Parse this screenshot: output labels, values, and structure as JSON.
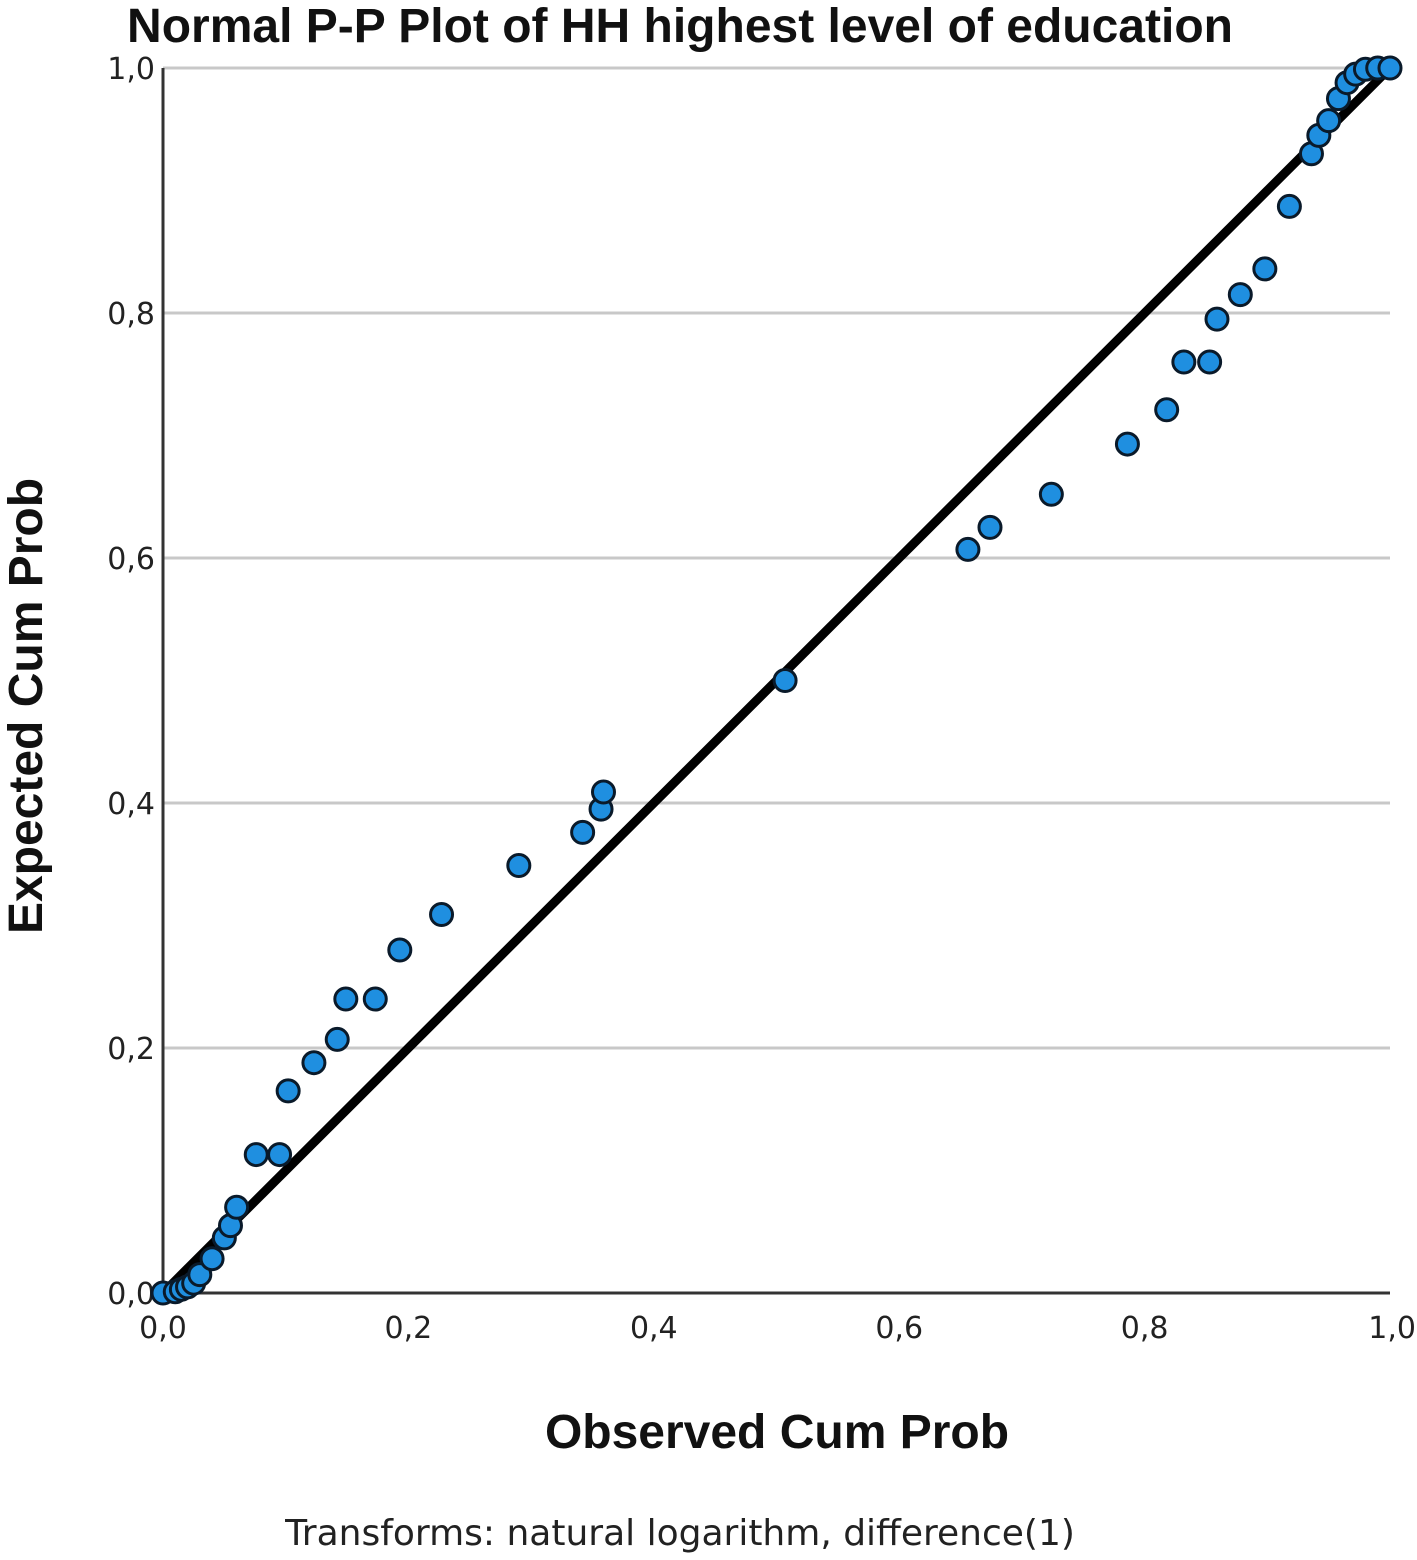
{
  "chart_data": {
    "type": "scatter",
    "title": "Normal P-P Plot of HH highest level of education",
    "xlabel": "Observed Cum Prob",
    "ylabel": "Expected Cum Prob",
    "footnote": "Transforms: natural logarithm, difference(1)",
    "xlim": [
      0,
      1
    ],
    "ylim": [
      0,
      1
    ],
    "x_ticks": [
      "0,0",
      "0,2",
      "0,4",
      "0,6",
      "0,8",
      "1,0"
    ],
    "y_ticks": [
      "0,0",
      "0,2",
      "0,4",
      "0,6",
      "0,8",
      "1,0"
    ],
    "grid": "horizontal",
    "reference_line": [
      [
        0,
        0
      ],
      [
        1,
        1
      ]
    ],
    "colors": {
      "point_fill": "#1f8fe0",
      "point_stroke": "#0a1a2a",
      "line": "#000000",
      "grid": "#c8c8c8"
    },
    "points": [
      [
        0.0,
        0.0
      ],
      [
        0.01,
        0.001
      ],
      [
        0.015,
        0.003
      ],
      [
        0.02,
        0.005
      ],
      [
        0.025,
        0.008
      ],
      [
        0.03,
        0.015
      ],
      [
        0.04,
        0.028
      ],
      [
        0.05,
        0.045
      ],
      [
        0.055,
        0.055
      ],
      [
        0.06,
        0.07
      ],
      [
        0.076,
        0.113
      ],
      [
        0.095,
        0.113
      ],
      [
        0.102,
        0.165
      ],
      [
        0.123,
        0.188
      ],
      [
        0.142,
        0.207
      ],
      [
        0.149,
        0.24
      ],
      [
        0.173,
        0.24
      ],
      [
        0.193,
        0.28
      ],
      [
        0.227,
        0.309
      ],
      [
        0.29,
        0.349
      ],
      [
        0.342,
        0.376
      ],
      [
        0.357,
        0.395
      ],
      [
        0.359,
        0.409
      ],
      [
        0.507,
        0.5
      ],
      [
        0.656,
        0.607
      ],
      [
        0.674,
        0.625
      ],
      [
        0.724,
        0.652
      ],
      [
        0.786,
        0.693
      ],
      [
        0.818,
        0.721
      ],
      [
        0.832,
        0.76
      ],
      [
        0.853,
        0.76
      ],
      [
        0.859,
        0.795
      ],
      [
        0.878,
        0.815
      ],
      [
        0.898,
        0.836
      ],
      [
        0.918,
        0.887
      ],
      [
        0.936,
        0.93
      ],
      [
        0.942,
        0.945
      ],
      [
        0.95,
        0.957
      ],
      [
        0.958,
        0.975
      ],
      [
        0.965,
        0.988
      ],
      [
        0.972,
        0.995
      ],
      [
        0.98,
        0.999
      ],
      [
        0.99,
        1.0
      ],
      [
        1.0,
        1.0
      ]
    ]
  }
}
